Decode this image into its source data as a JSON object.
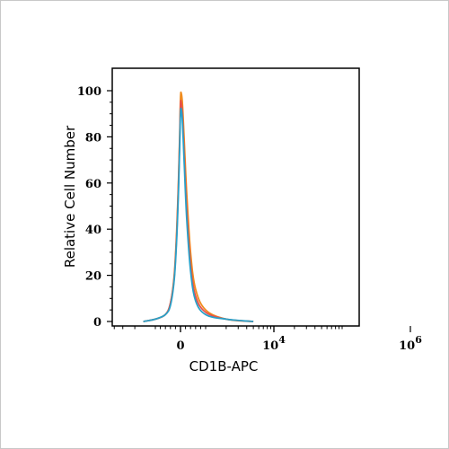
{
  "chart_data": {
    "type": "line",
    "xlabel": "CD1B-APC",
    "ylabel": "Relative Cell Number",
    "x_scale": "biexponential",
    "ylim": [
      0,
      100
    ],
    "y_ticks": [
      {
        "value": 0,
        "label": "0"
      },
      {
        "value": 20,
        "label": "20"
      },
      {
        "value": 40,
        "label": "40"
      },
      {
        "value": 60,
        "label": "60"
      },
      {
        "value": 80,
        "label": "80"
      },
      {
        "value": 100,
        "label": "100"
      }
    ],
    "x_ticks": [
      {
        "value": 0,
        "label": "0",
        "exp": ""
      },
      {
        "value": 10000,
        "label": "10",
        "exp": "4"
      },
      {
        "value": 1000000,
        "label": "10",
        "exp": "6"
      }
    ],
    "grid": false,
    "legend": "none",
    "series": [
      {
        "color": "#f08c1e",
        "x": [
          -1500,
          -1000,
          -600,
          -400,
          -250,
          -150,
          -80,
          -30,
          0,
          30,
          80,
          150,
          250,
          400,
          600,
          1000,
          2000,
          5000
        ],
        "y": [
          0,
          1,
          3,
          8,
          20,
          40,
          62,
          82,
          97,
          99,
          94,
          78,
          55,
          30,
          14,
          5,
          1,
          0
        ]
      },
      {
        "color": "#e8504a",
        "x": [
          -1500,
          -1000,
          -600,
          -400,
          -250,
          -150,
          -80,
          -30,
          0,
          30,
          80,
          150,
          250,
          400,
          600,
          1000,
          2000,
          5000
        ],
        "y": [
          0,
          1,
          3,
          8,
          19,
          38,
          60,
          80,
          94,
          95,
          89,
          72,
          48,
          25,
          11,
          4,
          1,
          0
        ]
      },
      {
        "color": "#2aa0c8",
        "x": [
          -1500,
          -1000,
          -600,
          -400,
          -250,
          -150,
          -80,
          -30,
          0,
          30,
          80,
          150,
          250,
          400,
          600,
          1000,
          2000,
          5000
        ],
        "y": [
          0,
          1,
          3,
          7,
          18,
          36,
          57,
          77,
          90,
          92,
          86,
          68,
          44,
          22,
          9,
          3,
          1,
          0
        ]
      }
    ]
  }
}
